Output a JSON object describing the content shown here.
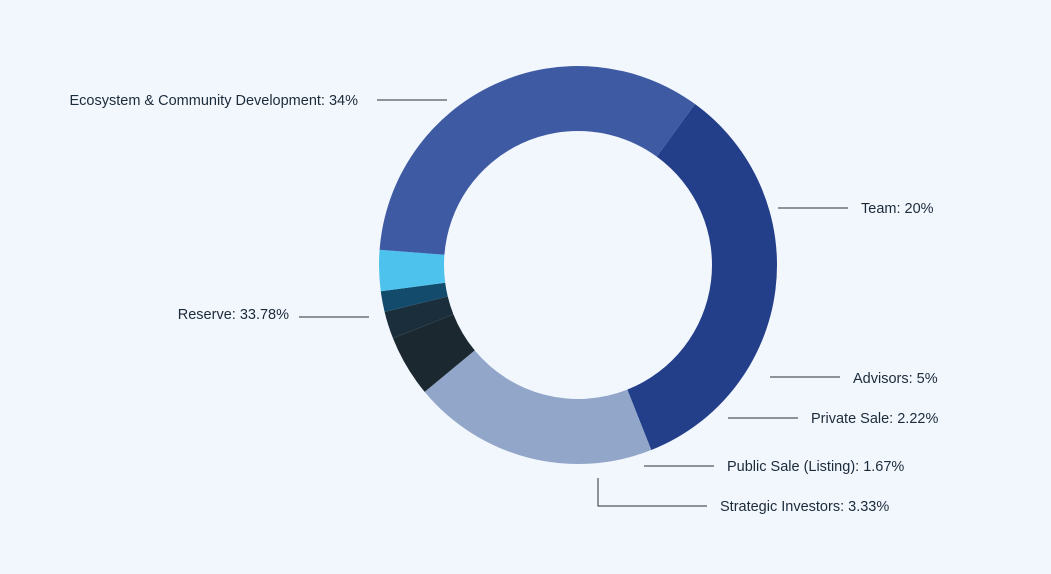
{
  "chart_data": {
    "type": "pie",
    "variant": "donut",
    "categories": [
      "Ecosystem & Community Development",
      "Team",
      "Advisors",
      "Private Sale",
      "Public Sale (Listing)",
      "Strategic Investors",
      "Reserve"
    ],
    "values": [
      34,
      20,
      5,
      2.22,
      1.67,
      3.33,
      33.78
    ],
    "labels": [
      "Ecosystem & Community Development: 34%",
      "Team: 20%",
      "Advisors: 5%",
      "Private Sale: 2.22%",
      "Public Sale (Listing): 1.67%",
      "Strategic Investors: 3.33%",
      "Reserve: 33.78%"
    ],
    "colors": [
      "#243f8a",
      "#92a6c9",
      "#1b2830",
      "#1b2e3c",
      "#134b6c",
      "#4cc2ec",
      "#3e5aa3"
    ],
    "legend": "none",
    "title": ""
  }
}
